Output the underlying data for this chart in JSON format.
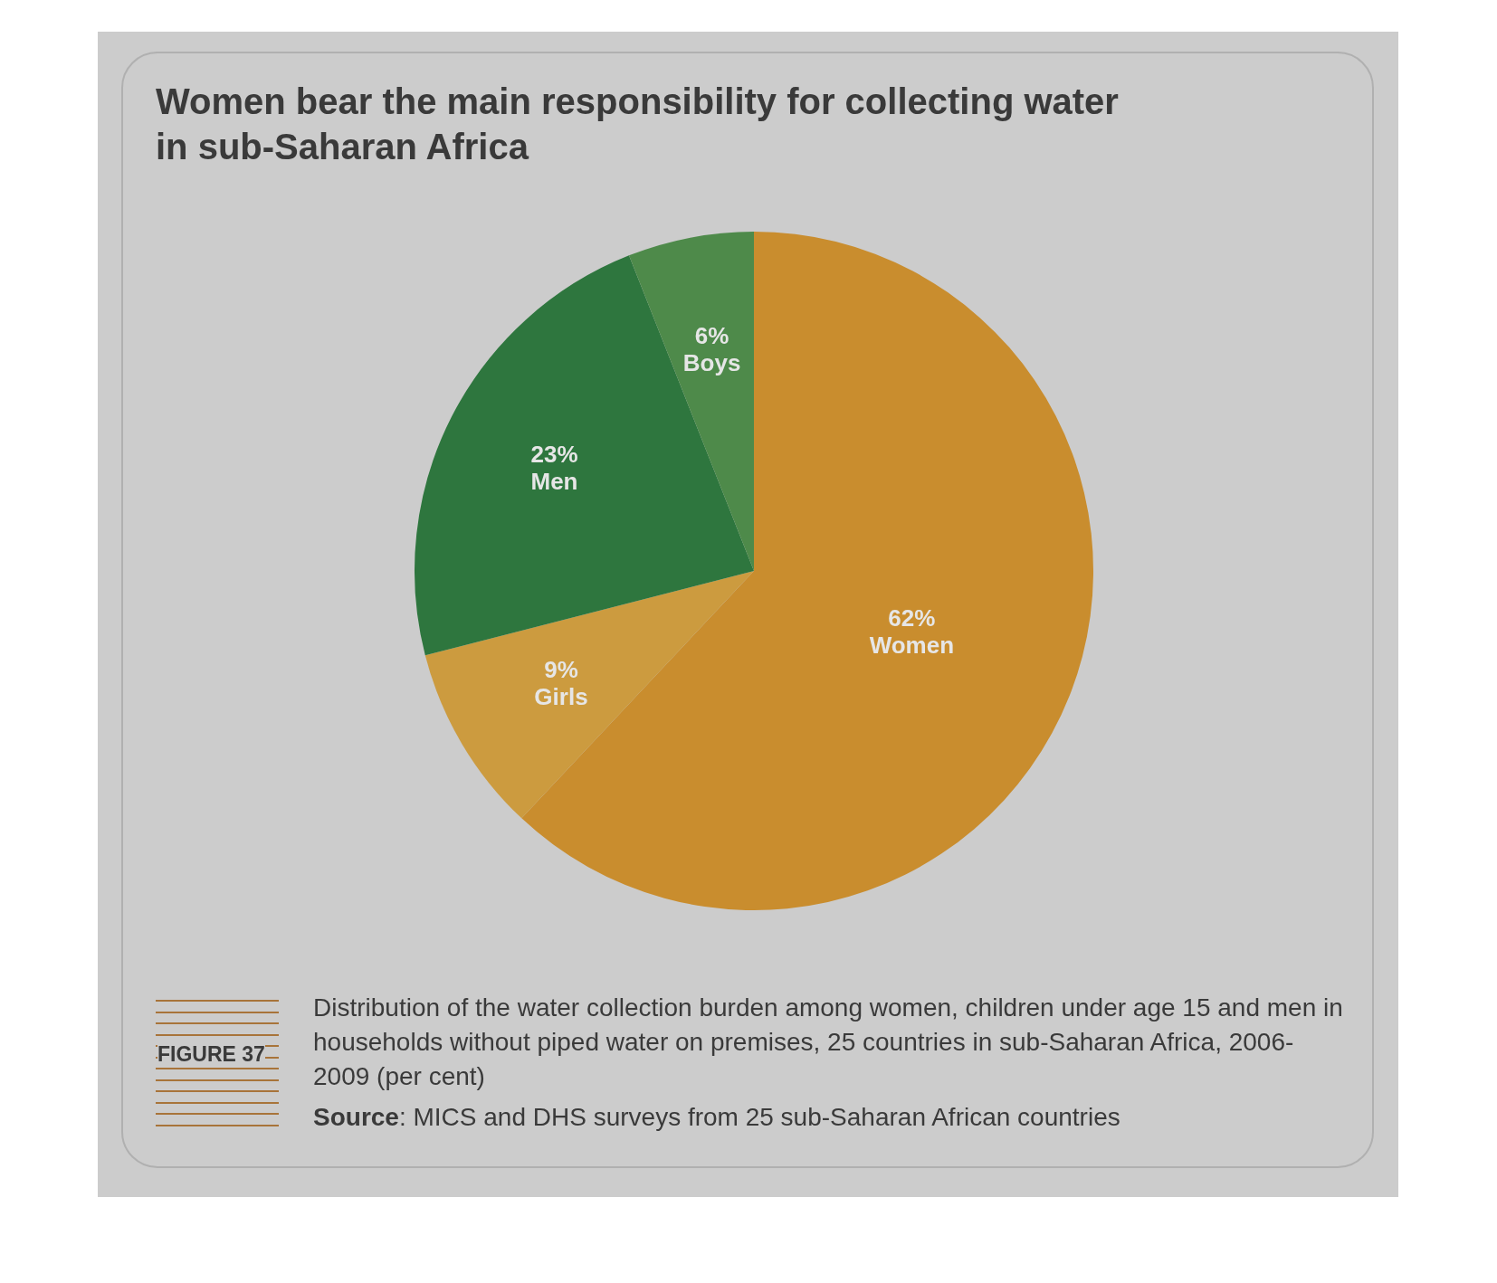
{
  "chart_data": {
    "type": "pie",
    "title": "Women bear the main responsibility for collecting water in sub-Saharan Africa",
    "categories": [
      "Women",
      "Girls",
      "Men",
      "Boys"
    ],
    "values": [
      62,
      9,
      23,
      6
    ],
    "value_labels": [
      "62%",
      "9%",
      "23%",
      "6%"
    ],
    "colors": [
      "#c98d2e",
      "#cc9b3f",
      "#2e763e",
      "#4e8a4a"
    ],
    "legend": false,
    "annotations": [
      "FIGURE 37",
      "Distribution of the water collection burden among women, children under age 15 and men in households without piped water on premises, 25 countries in sub-Saharan Africa, 2006-2009 (per cent)",
      "Source: MICS and DHS surveys from 25 sub-Saharan African countries"
    ]
  }
}
